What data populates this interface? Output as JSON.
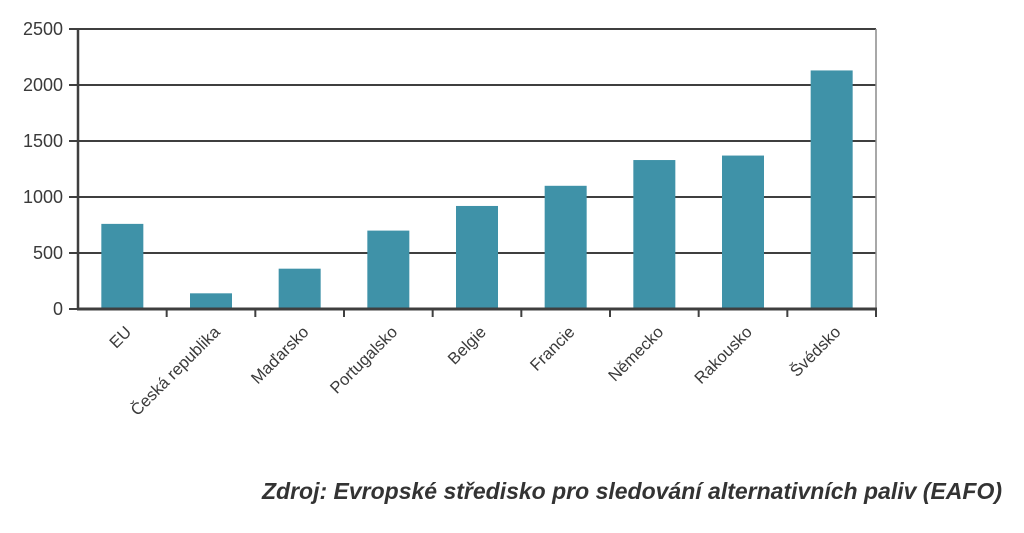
{
  "chart_data": {
    "type": "bar",
    "categories": [
      "EU",
      "Česká republika",
      "Maďarsko",
      "Portugalsko",
      "Belgie",
      "Francie",
      "Německo",
      "Rakousko",
      "Švédsko"
    ],
    "values": [
      760,
      140,
      360,
      700,
      920,
      1100,
      1330,
      1370,
      2130
    ],
    "title": "",
    "xlabel": "",
    "ylabel": "",
    "ylim": [
      0,
      2500
    ],
    "yticks": [
      0,
      500,
      1000,
      1500,
      2000,
      2500
    ],
    "grid": true,
    "legend": false,
    "bar_color": "#3f92a8",
    "grid_color": "#3f3f3f",
    "axis_color": "#3f3f3f",
    "right_border_color": "#8c8c8c",
    "tick_label_color": "#3a3a3a"
  },
  "caption": {
    "text": "Zdroj: Evropské středisko pro sledování alternativních paliv (EAFO)"
  }
}
